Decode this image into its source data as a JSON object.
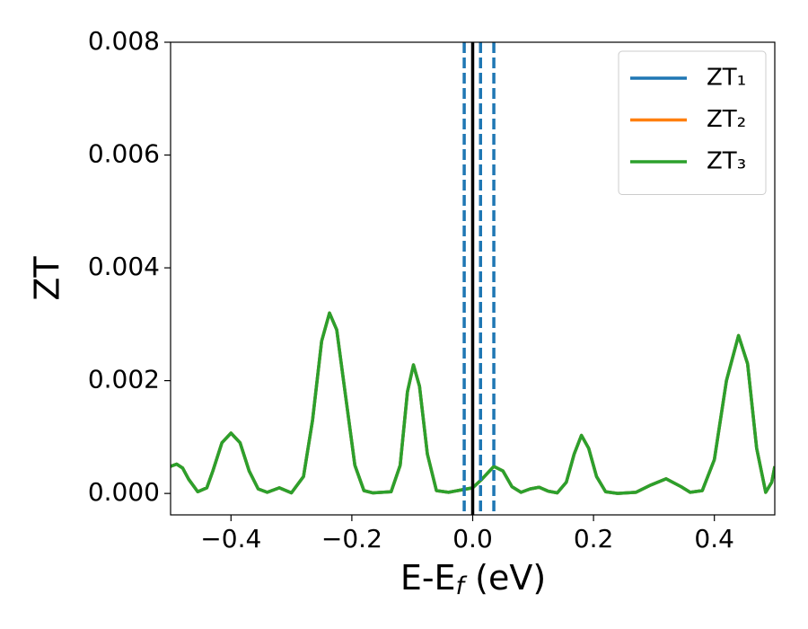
{
  "chart_data": {
    "type": "line",
    "xlabel": "E-Ef (eV)",
    "ylabel": "ZT",
    "x": [
      -0.5,
      -0.49,
      -0.48,
      -0.47,
      -0.455,
      -0.44,
      -0.43,
      -0.415,
      -0.4,
      -0.385,
      -0.37,
      -0.355,
      -0.34,
      -0.32,
      -0.3,
      -0.28,
      -0.265,
      -0.25,
      -0.237,
      -0.225,
      -0.21,
      -0.195,
      -0.18,
      -0.165,
      -0.15,
      -0.135,
      -0.12,
      -0.108,
      -0.098,
      -0.088,
      -0.075,
      -0.06,
      -0.04,
      -0.02,
      0,
      0.015,
      0.035,
      0.05,
      0.065,
      0.08,
      0.095,
      0.11,
      0.125,
      0.14,
      0.155,
      0.168,
      0.18,
      0.192,
      0.205,
      0.22,
      0.24,
      0.27,
      0.295,
      0.32,
      0.345,
      0.36,
      0.38,
      0.4,
      0.42,
      0.44,
      0.455,
      0.47,
      0.485,
      0.495,
      0.5
    ],
    "series": [
      {
        "name": "ZT₁",
        "color": "#1f77b4",
        "values": [
          0.00048,
          0.00052,
          0.00045,
          0.00025,
          3e-05,
          0.0001,
          0.0004,
          0.0009,
          0.00107,
          0.0009,
          0.0004,
          8e-05,
          2e-05,
          0.0001,
          1e-05,
          0.0003,
          0.0013,
          0.0027,
          0.0032,
          0.0029,
          0.0017,
          0.0005,
          5e-05,
          1e-05,
          2e-05,
          3e-05,
          0.0005,
          0.0018,
          0.00228,
          0.0019,
          0.0007,
          5e-05,
          2e-05,
          6e-05,
          0.0001,
          0.00025,
          0.00048,
          0.0004,
          0.00012,
          2e-05,
          8e-05,
          0.00011,
          4e-05,
          1e-05,
          0.0002,
          0.0007,
          0.00103,
          0.0008,
          0.0003,
          3e-05,
          0,
          2e-05,
          0.00015,
          0.00026,
          0.00012,
          2e-05,
          5e-05,
          0.0006,
          0.002,
          0.0028,
          0.0023,
          0.0008,
          2e-05,
          0.0002,
          0.00048
        ]
      },
      {
        "name": "ZT₂",
        "color": "#ff7f0e",
        "values": [
          0.00048,
          0.00052,
          0.00045,
          0.00025,
          3e-05,
          0.0001,
          0.0004,
          0.0009,
          0.00107,
          0.0009,
          0.0004,
          8e-05,
          2e-05,
          0.0001,
          1e-05,
          0.0003,
          0.0013,
          0.0027,
          0.0032,
          0.0029,
          0.0017,
          0.0005,
          5e-05,
          1e-05,
          2e-05,
          3e-05,
          0.0005,
          0.0018,
          0.00228,
          0.0019,
          0.0007,
          5e-05,
          2e-05,
          6e-05,
          0.0001,
          0.00025,
          0.00048,
          0.0004,
          0.00012,
          2e-05,
          8e-05,
          0.00011,
          4e-05,
          1e-05,
          0.0002,
          0.0007,
          0.00103,
          0.0008,
          0.0003,
          3e-05,
          0,
          2e-05,
          0.00015,
          0.00026,
          0.00012,
          2e-05,
          5e-05,
          0.0006,
          0.002,
          0.0028,
          0.0023,
          0.0008,
          2e-05,
          0.0002,
          0.00048
        ]
      },
      {
        "name": "ZT₃",
        "color": "#2ca02c",
        "values": [
          0.00048,
          0.00052,
          0.00045,
          0.00025,
          3e-05,
          0.0001,
          0.0004,
          0.0009,
          0.00107,
          0.0009,
          0.0004,
          8e-05,
          2e-05,
          0.0001,
          1e-05,
          0.0003,
          0.0013,
          0.0027,
          0.0032,
          0.0029,
          0.0017,
          0.0005,
          5e-05,
          1e-05,
          2e-05,
          3e-05,
          0.0005,
          0.0018,
          0.00228,
          0.0019,
          0.0007,
          5e-05,
          2e-05,
          6e-05,
          0.0001,
          0.00025,
          0.00048,
          0.0004,
          0.00012,
          2e-05,
          8e-05,
          0.00011,
          4e-05,
          1e-05,
          0.0002,
          0.0007,
          0.00103,
          0.0008,
          0.0003,
          3e-05,
          0,
          2e-05,
          0.00015,
          0.00026,
          0.00012,
          2e-05,
          5e-05,
          0.0006,
          0.002,
          0.0028,
          0.0023,
          0.0008,
          2e-05,
          0.0002,
          0.00048
        ]
      }
    ],
    "vlines": [
      {
        "x": 0,
        "color": "#000000",
        "style": "solid"
      },
      {
        "x": -0.014,
        "color": "#1f77b4",
        "style": "dashed"
      },
      {
        "x": 0.013,
        "color": "#1f77b4",
        "style": "dashed"
      },
      {
        "x": 0.035,
        "color": "#1f77b4",
        "style": "dashed"
      }
    ],
    "xlim": [
      -0.5,
      0.5
    ],
    "xticks": [
      {
        "value": -0.4,
        "label": "−0.4"
      },
      {
        "value": -0.2,
        "label": "−0.2"
      },
      {
        "value": 0,
        "label": "0.0"
      },
      {
        "value": 0.2,
        "label": "0.2"
      },
      {
        "value": 0.4,
        "label": "0.4"
      }
    ],
    "ylim": [
      -0.00038,
      0.008
    ],
    "yticks": [
      {
        "value": 0,
        "label": "0.000"
      },
      {
        "value": 0.002,
        "label": "0.002"
      },
      {
        "value": 0.004,
        "label": "0.004"
      },
      {
        "value": 0.006,
        "label": "0.006"
      },
      {
        "value": 0.008,
        "label": "0.008"
      }
    ],
    "grid": false,
    "legend": "upper right"
  }
}
